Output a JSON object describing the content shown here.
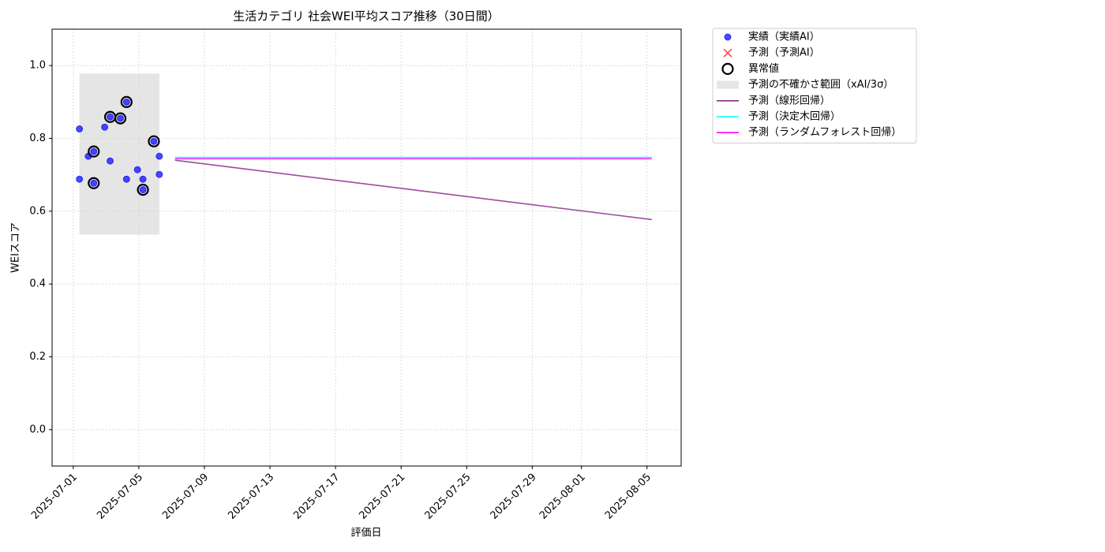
{
  "chart_data": {
    "type": "scatter",
    "title": "生活カテゴリ 社会WEI平均スコア推移（30日間）",
    "xlabel": "評価日",
    "ylabel": "WEIスコア",
    "xlim": [
      "2025-06-29T17:00",
      "2025-08-07T02:00"
    ],
    "ylim": [
      -0.1,
      1.1
    ],
    "xticks": [
      "2025-07-01",
      "2025-07-05",
      "2025-07-09",
      "2025-07-13",
      "2025-07-17",
      "2025-07-21",
      "2025-07-25",
      "2025-07-29",
      "2025-08-01",
      "2025-08-05"
    ],
    "yticks": [
      {
        "value": 0,
        "label": "0.0"
      },
      0.2,
      0.4,
      0.6,
      0.8,
      {
        "value": 1,
        "label": "1.0"
      }
    ],
    "grid": true,
    "legend": "outside upper right",
    "series": [
      {
        "name": "実績（実績AI）",
        "type": "scatter",
        "color": "#0000ff",
        "x": [
          "2025-07-01T09:00",
          "2025-07-01T09:00",
          "2025-07-01T22:00",
          "2025-07-02T06:00",
          "2025-07-02T06:00",
          "2025-07-02T22:00",
          "2025-07-03T06:00",
          "2025-07-03T06:00",
          "2025-07-03T21:00",
          "2025-07-04T06:00",
          "2025-07-04T06:00",
          "2025-07-04T22:00",
          "2025-07-05T06:00",
          "2025-07-05T06:00",
          "2025-07-05T22:00",
          "2025-07-06T06:00",
          "2025-07-06T06:00"
        ],
        "values": [
          0.826,
          0.688,
          0.751,
          0.764,
          0.677,
          0.831,
          0.859,
          0.738,
          0.855,
          0.9,
          0.688,
          0.714,
          0.688,
          0.659,
          0.792,
          0.751,
          0.701
        ]
      },
      {
        "name": "予測（予測AI）",
        "type": "cross",
        "color": "#ff0000",
        "x": [],
        "values": []
      },
      {
        "name": "異常値",
        "type": "ring",
        "color": "#000000",
        "x": [
          "2025-07-02T06:00",
          "2025-07-02T06:00",
          "2025-07-03T06:00",
          "2025-07-03T21:00",
          "2025-07-04T06:00",
          "2025-07-05T06:00",
          "2025-07-05T22:00"
        ],
        "values": [
          0.764,
          0.677,
          0.859,
          0.855,
          0.9,
          0.659,
          0.792
        ]
      },
      {
        "name": "予測の不確かさ範囲（xAI/3σ）",
        "type": "band",
        "color": "#d3d3d3",
        "x": [
          "2025-07-01T09:00",
          "2025-07-06T06:00"
        ],
        "lower": [
          0.536,
          0.536
        ],
        "upper": [
          0.978,
          0.978
        ]
      },
      {
        "name": "予測（線形回帰）",
        "type": "line",
        "color": "#8b2c8f",
        "x": [
          "2025-07-07T05:00",
          "2025-08-05T07:00"
        ],
        "values": [
          0.74,
          0.577
        ]
      },
      {
        "name": "予測（決定木回帰）",
        "type": "line",
        "color": "#00ffff",
        "x": [
          "2025-07-07T05:00",
          "2025-08-05T07:00"
        ],
        "values": [
          0.748,
          0.748
        ]
      },
      {
        "name": "予測（ランダムフォレスト回帰）",
        "type": "line",
        "color": "#ff00ff",
        "x": [
          "2025-07-07T05:00",
          "2025-08-05T07:00"
        ],
        "values": [
          0.744,
          0.744
        ]
      }
    ]
  }
}
